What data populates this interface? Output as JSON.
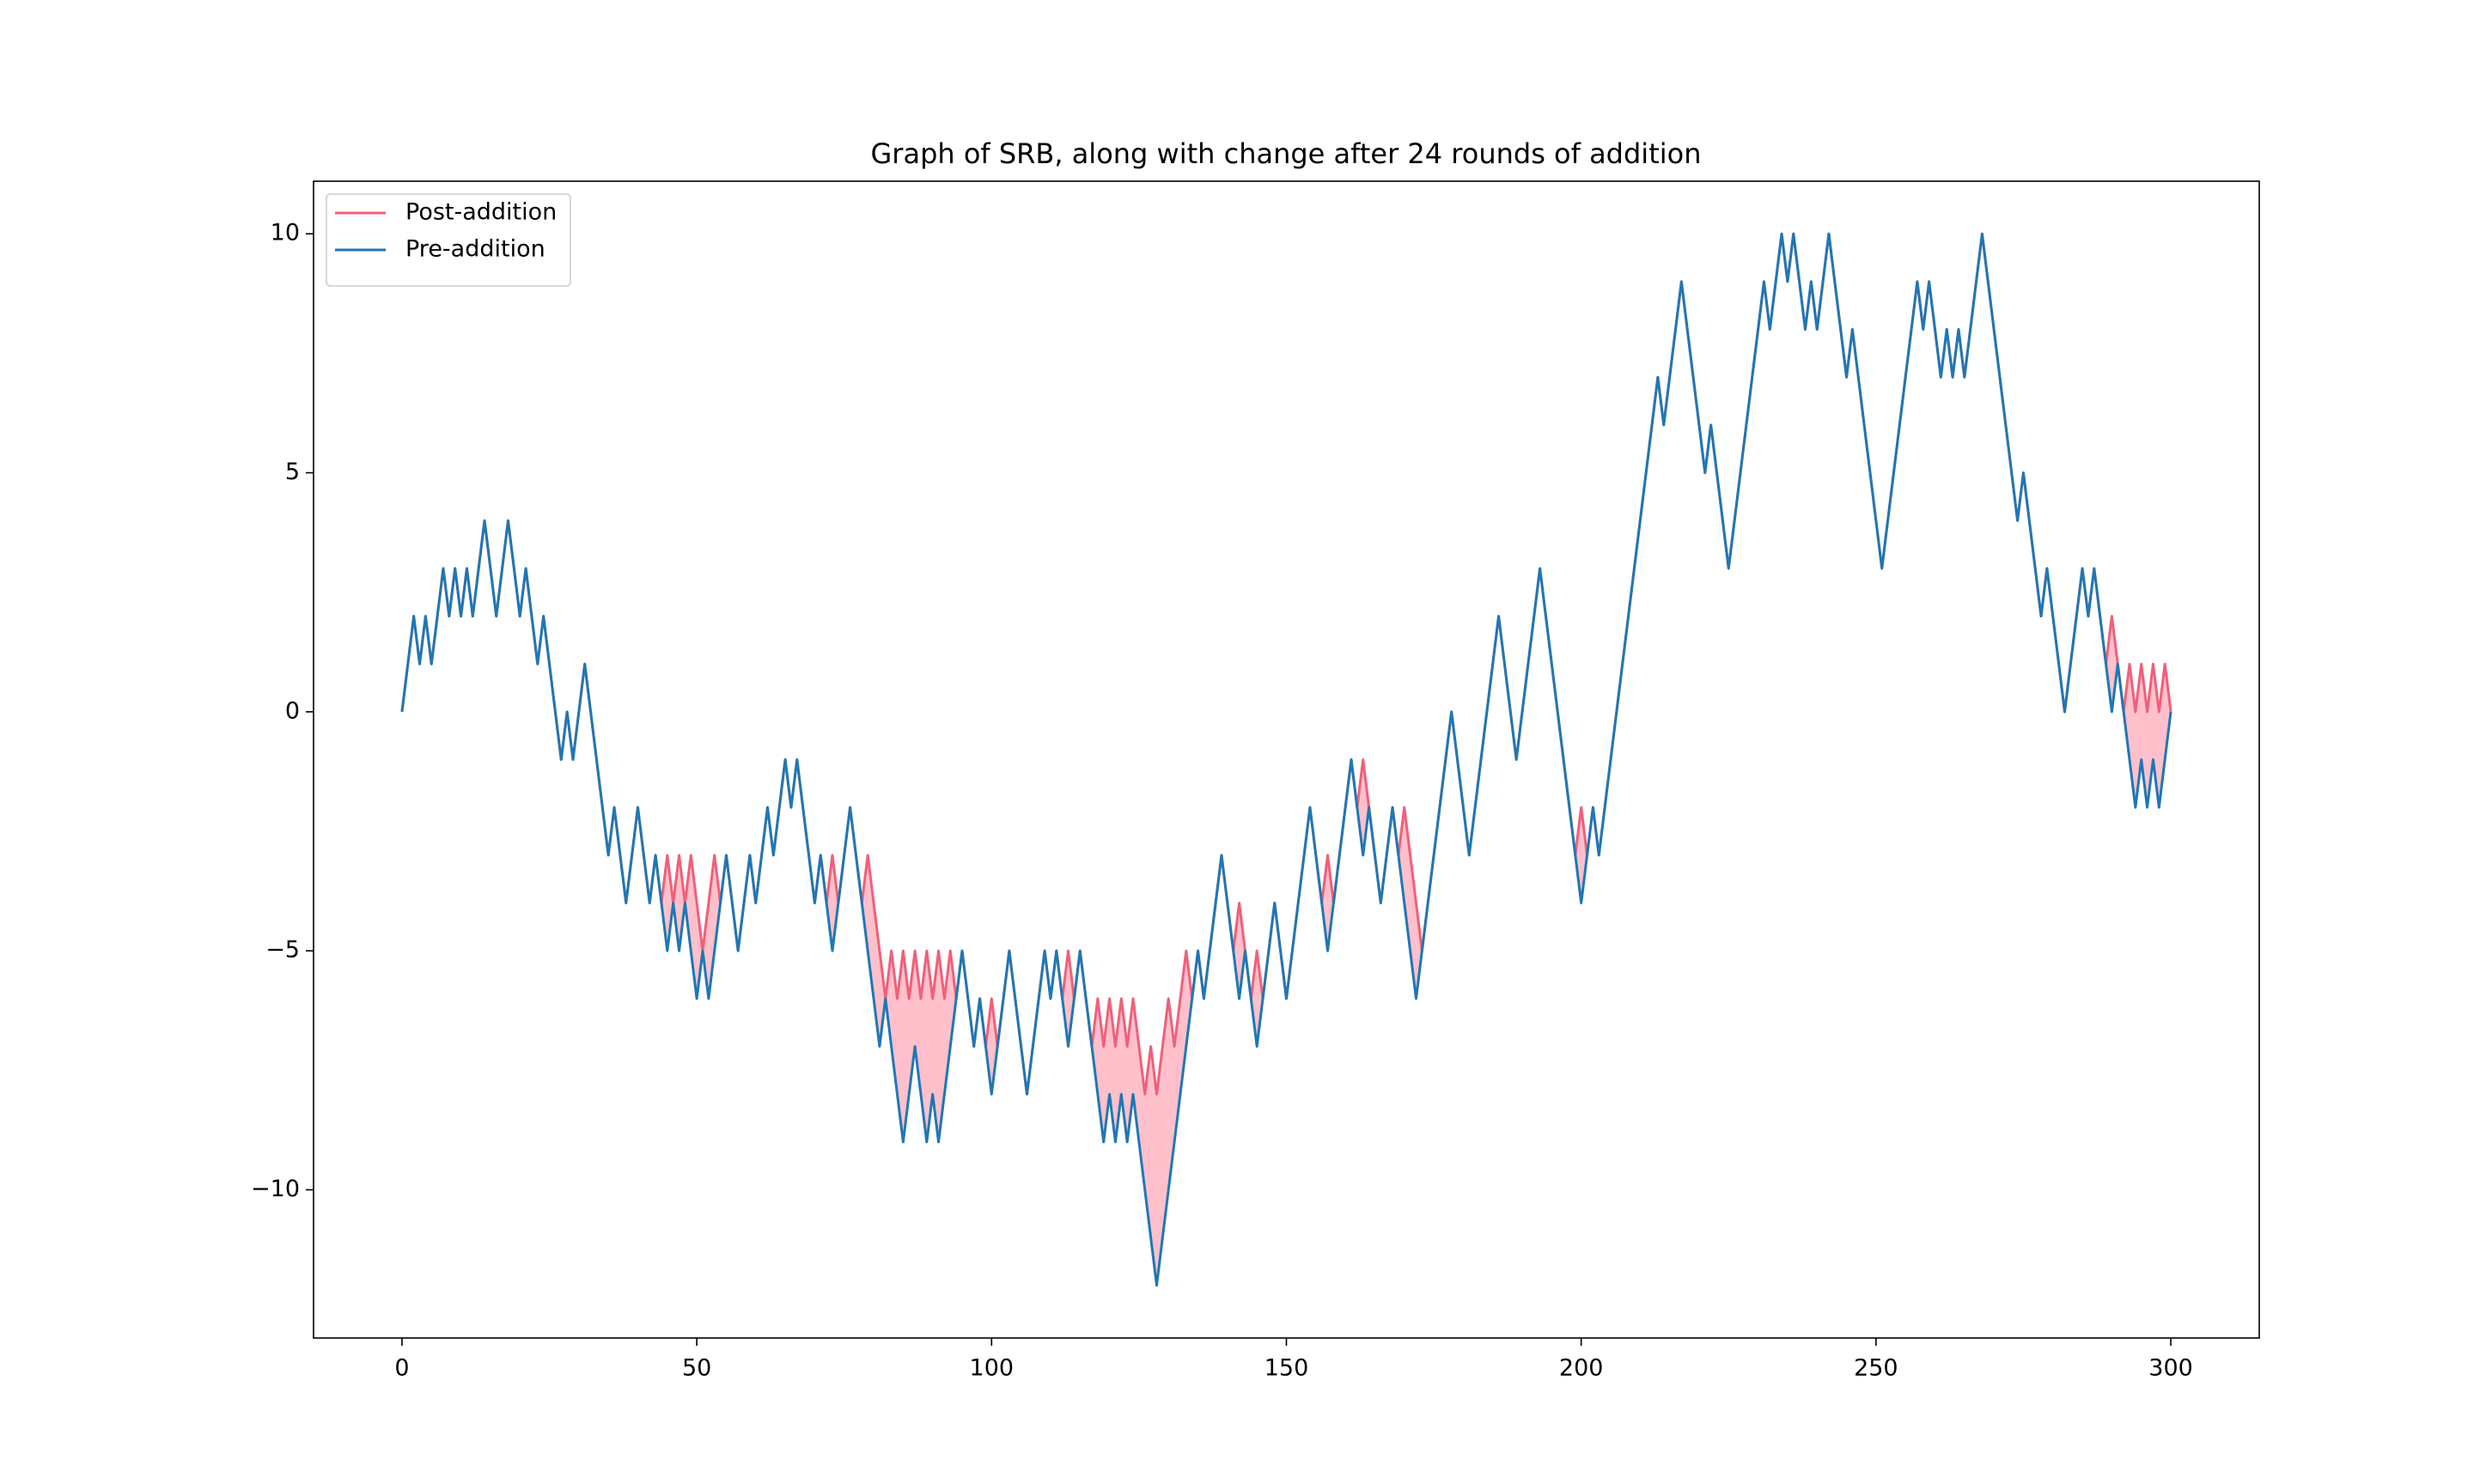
{
  "chart_data": {
    "type": "line",
    "title": "Graph of SRB, along with change after 24 rounds of addition",
    "x": [
      0,
      1,
      2,
      3,
      4,
      5,
      6,
      7,
      8,
      9,
      10,
      11,
      12,
      13,
      14,
      15,
      16,
      17,
      18,
      19,
      20,
      21,
      22,
      23,
      24,
      25,
      26,
      27,
      28,
      29,
      30,
      31,
      32,
      33,
      34,
      35,
      36,
      37,
      38,
      39,
      40,
      41,
      42,
      43,
      44,
      45,
      46,
      47,
      48,
      49,
      50,
      51,
      52,
      53,
      54,
      55,
      56,
      57,
      58,
      59,
      60,
      61,
      62,
      63,
      64,
      65,
      66,
      67,
      68,
      69,
      70,
      71,
      72,
      73,
      74,
      75,
      76,
      77,
      78,
      79,
      80,
      81,
      82,
      83,
      84,
      85,
      86,
      87,
      88,
      89,
      90,
      91,
      92,
      93,
      94,
      95,
      96,
      97,
      98,
      99,
      100,
      101,
      102,
      103,
      104,
      105,
      106,
      107,
      108,
      109,
      110,
      111,
      112,
      113,
      114,
      115,
      116,
      117,
      118,
      119,
      120,
      121,
      122,
      123,
      124,
      125,
      126,
      127,
      128,
      129,
      130,
      131,
      132,
      133,
      134,
      135,
      136,
      137,
      138,
      139,
      140,
      141,
      142,
      143,
      144,
      145,
      146,
      147,
      148,
      149,
      150,
      151,
      152,
      153,
      154,
      155,
      156,
      157,
      158,
      159,
      160,
      161,
      162,
      163,
      164,
      165,
      166,
      167,
      168,
      169,
      170,
      171,
      172,
      173,
      174,
      175,
      176,
      177,
      178,
      179,
      180,
      181,
      182,
      183,
      184,
      185,
      186,
      187,
      188,
      189,
      190,
      191,
      192,
      193,
      194,
      195,
      196,
      197,
      198,
      199,
      200,
      201,
      202,
      203,
      204,
      205,
      206,
      207,
      208,
      209,
      210,
      211,
      212,
      213,
      214,
      215,
      216,
      217,
      218,
      219,
      220,
      221,
      222,
      223,
      224,
      225,
      226,
      227,
      228,
      229,
      230,
      231,
      232,
      233,
      234,
      235,
      236,
      237,
      238,
      239,
      240,
      241,
      242,
      243,
      244,
      245,
      246,
      247,
      248,
      249,
      250,
      251,
      252,
      253,
      254,
      255,
      256,
      257,
      258,
      259,
      260,
      261,
      262,
      263,
      264,
      265,
      266,
      267,
      268,
      269,
      270,
      271,
      272,
      273,
      274,
      275,
      276,
      277,
      278,
      279,
      280,
      281,
      282,
      283,
      284,
      285,
      286,
      287,
      288,
      289,
      290,
      291,
      292,
      293,
      294,
      295,
      296,
      297,
      298,
      299,
      300
    ],
    "series": [
      {
        "name": "Post-addition",
        "color": "#f0607a",
        "values": [
          0,
          1,
          2,
          1,
          2,
          1,
          2,
          3,
          2,
          3,
          2,
          3,
          2,
          3,
          4,
          3,
          2,
          3,
          4,
          3,
          2,
          3,
          2,
          1,
          2,
          1,
          0,
          -1,
          0,
          -1,
          0,
          1,
          0,
          -1,
          -2,
          -3,
          -2,
          -3,
          -4,
          -3,
          -2,
          -3,
          -4,
          -3,
          -4,
          -3,
          -4,
          -3,
          -4,
          -3,
          -4,
          -5,
          -4,
          -3,
          -4,
          -3,
          -4,
          -5,
          -4,
          -3,
          -4,
          -3,
          -2,
          -3,
          -2,
          -1,
          -2,
          -1,
          -2,
          -3,
          -4,
          -3,
          -4,
          -3,
          -4,
          -3,
          -2,
          -3,
          -4,
          -3,
          -4,
          -5,
          -6,
          -5,
          -6,
          -5,
          -6,
          -5,
          -6,
          -5,
          -6,
          -5,
          -6,
          -5,
          -6,
          -5,
          -6,
          -7,
          -6,
          -7,
          -6,
          -7,
          -6,
          -5,
          -6,
          -7,
          -8,
          -7,
          -6,
          -5,
          -6,
          -5,
          -6,
          -5,
          -6,
          -5,
          -6,
          -7,
          -6,
          -7,
          -6,
          -7,
          -6,
          -7,
          -6,
          -7,
          -8,
          -7,
          -8,
          -7,
          -6,
          -7,
          -6,
          -5,
          -6,
          -5,
          -6,
          -5,
          -4,
          -3,
          -4,
          -5,
          -4,
          -5,
          -6,
          -5,
          -6,
          -5,
          -4,
          -5,
          -6,
          -5,
          -4,
          -3,
          -2,
          -3,
          -4,
          -3,
          -4,
          -3,
          -2,
          -1,
          -2,
          -1,
          -2,
          -3,
          -4,
          -3,
          -2,
          -3,
          -2,
          -3,
          -4,
          -5,
          -4,
          -3,
          -2,
          -1,
          0,
          -1,
          -2,
          -3,
          -2,
          -1,
          0,
          1,
          2,
          1,
          0,
          -1,
          0,
          1,
          2,
          3,
          2,
          1,
          0,
          -1,
          -2,
          -3,
          -2,
          -3,
          -2,
          -3,
          -2,
          -1,
          0,
          1,
          2,
          3,
          4,
          5,
          6,
          7,
          6,
          7,
          8,
          9,
          8,
          7,
          6,
          5,
          6,
          5,
          4,
          3,
          4,
          5,
          6,
          7,
          8,
          9,
          8,
          9,
          10,
          9,
          10,
          9,
          8,
          9,
          8,
          9,
          10,
          9,
          8,
          7,
          8,
          7,
          6,
          5,
          4,
          3,
          4,
          5,
          6,
          7,
          8,
          9,
          8,
          9,
          8,
          7,
          8,
          7,
          8,
          7,
          8,
          9,
          10,
          9,
          8,
          7,
          6,
          5,
          4,
          5,
          4,
          3,
          2,
          3,
          2,
          1,
          0,
          1,
          2,
          3,
          2,
          3,
          2,
          1,
          2,
          1,
          0,
          1,
          0,
          1,
          0,
          1,
          0,
          1,
          0
        ]
      },
      {
        "name": "Pre-addition",
        "color": "#1f77b4",
        "values": [
          0,
          1,
          2,
          1,
          2,
          1,
          2,
          3,
          2,
          3,
          2,
          3,
          2,
          3,
          4,
          3,
          2,
          3,
          4,
          3,
          2,
          3,
          2,
          1,
          2,
          1,
          0,
          -1,
          0,
          -1,
          0,
          1,
          0,
          -1,
          -2,
          -3,
          -2,
          -3,
          -4,
          -3,
          -2,
          -3,
          -4,
          -3,
          -4,
          -5,
          -4,
          -5,
          -4,
          -5,
          -6,
          -5,
          -6,
          -5,
          -4,
          -3,
          -4,
          -5,
          -4,
          -3,
          -4,
          -3,
          -2,
          -3,
          -2,
          -1,
          -2,
          -1,
          -2,
          -3,
          -4,
          -3,
          -4,
          -5,
          -4,
          -3,
          -2,
          -3,
          -4,
          -5,
          -6,
          -7,
          -6,
          -7,
          -8,
          -9,
          -8,
          -7,
          -8,
          -9,
          -8,
          -9,
          -8,
          -7,
          -6,
          -5,
          -6,
          -7,
          -6,
          -7,
          -8,
          -7,
          -6,
          -5,
          -6,
          -7,
          -8,
          -7,
          -6,
          -5,
          -6,
          -5,
          -6,
          -7,
          -6,
          -5,
          -6,
          -7,
          -8,
          -9,
          -8,
          -9,
          -8,
          -9,
          -8,
          -9,
          -10,
          -11,
          -12,
          -11,
          -10,
          -9,
          -8,
          -7,
          -6,
          -5,
          -6,
          -5,
          -4,
          -3,
          -4,
          -5,
          -6,
          -5,
          -6,
          -7,
          -6,
          -5,
          -4,
          -5,
          -6,
          -5,
          -4,
          -3,
          -2,
          -3,
          -4,
          -5,
          -4,
          -3,
          -2,
          -1,
          -2,
          -3,
          -2,
          -3,
          -4,
          -3,
          -2,
          -3,
          -4,
          -5,
          -6,
          -5,
          -4,
          -3,
          -2,
          -1,
          0,
          -1,
          -2,
          -3,
          -2,
          -1,
          0,
          1,
          2,
          1,
          0,
          -1,
          0,
          1,
          2,
          3,
          2,
          1,
          0,
          -1,
          -2,
          -3,
          -4,
          -3,
          -2,
          -3,
          -2,
          -1,
          0,
          1,
          2,
          3,
          4,
          5,
          6,
          7,
          6,
          7,
          8,
          9,
          8,
          7,
          6,
          5,
          6,
          5,
          4,
          3,
          4,
          5,
          6,
          7,
          8,
          9,
          8,
          9,
          10,
          9,
          10,
          9,
          8,
          9,
          8,
          9,
          10,
          9,
          8,
          7,
          8,
          7,
          6,
          5,
          4,
          3,
          4,
          5,
          6,
          7,
          8,
          9,
          8,
          9,
          8,
          7,
          8,
          7,
          8,
          7,
          8,
          9,
          10,
          9,
          8,
          7,
          6,
          5,
          4,
          5,
          4,
          3,
          2,
          3,
          2,
          1,
          0,
          1,
          2,
          3,
          2,
          3,
          2,
          1,
          0,
          1,
          0,
          -1,
          -2,
          -1,
          -2,
          -1,
          -2,
          -1,
          0
        ]
      }
    ],
    "fill_color": "#ffc0cb",
    "xlim": [
      -15,
      315
    ],
    "ylim": [
      -13.1,
      11.1
    ],
    "xticks": [
      0,
      50,
      100,
      150,
      200,
      250,
      300
    ],
    "yticks": [
      {
        "value": -10,
        "label": "−10"
      },
      {
        "value": -5,
        "label": "−5"
      },
      0,
      5,
      10
    ],
    "grid": false,
    "legend": "upper-left"
  }
}
